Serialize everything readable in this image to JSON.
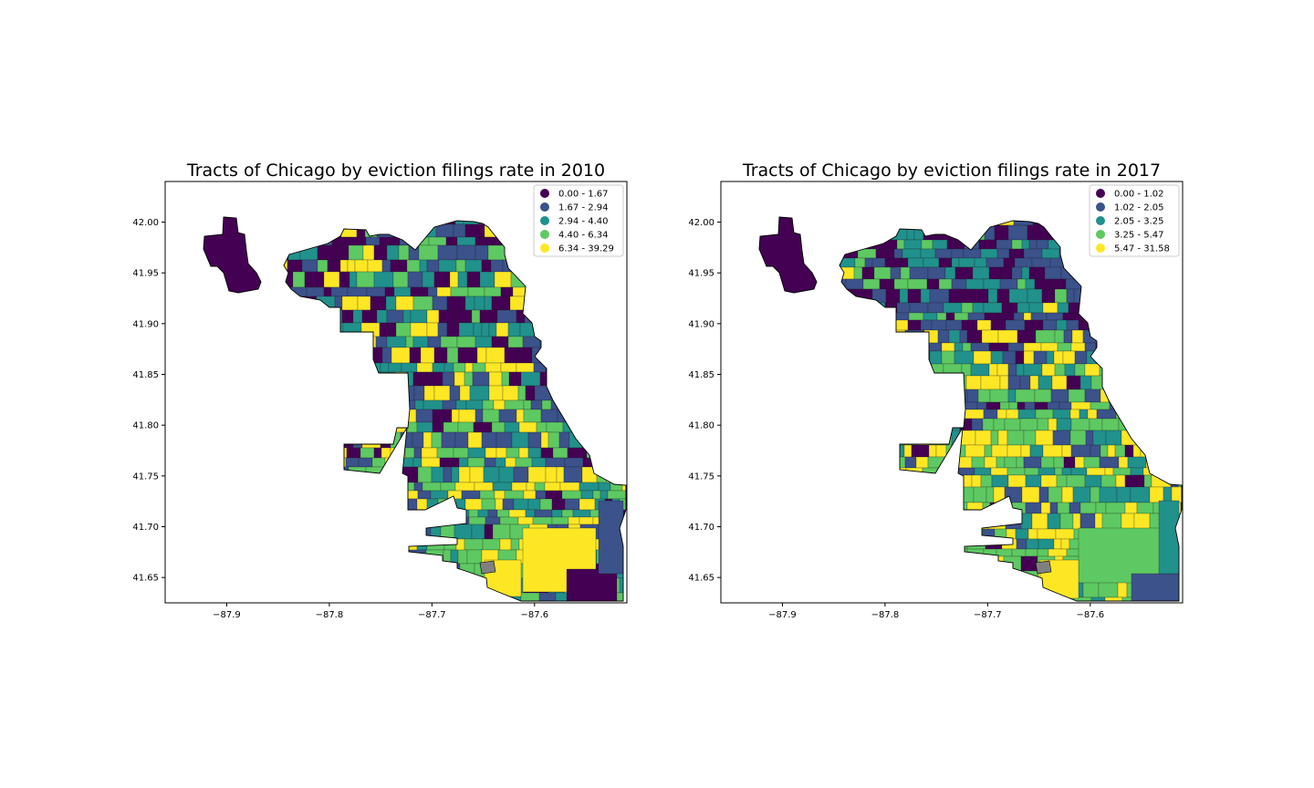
{
  "chart_data": [
    {
      "type": "choropleth",
      "title": "Tracts of Chicago by eviction filings rate in 2010",
      "xlim": [
        -87.96,
        -87.51
      ],
      "ylim": [
        41.625,
        42.04
      ],
      "xticks": [
        "−87.9",
        "−87.8",
        "−87.7",
        "−87.6"
      ],
      "xtick_values": [
        -87.9,
        -87.8,
        -87.7,
        -87.6
      ],
      "yticks": [
        "42.00",
        "41.95",
        "41.90",
        "41.85",
        "41.80",
        "41.75",
        "41.70",
        "41.65"
      ],
      "ytick_values": [
        42.0,
        41.95,
        41.9,
        41.85,
        41.8,
        41.75,
        41.7,
        41.65
      ],
      "legend_placement": "top-right",
      "legend": [
        {
          "label": "0.00 - 1.67",
          "color": "#440154"
        },
        {
          "label": "1.67 - 2.94",
          "color": "#3b528b"
        },
        {
          "label": "2.94 - 4.40",
          "color": "#21918c"
        },
        {
          "label": "4.40 - 6.34",
          "color": "#5ec962"
        },
        {
          "label": "6.34 - 39.29",
          "color": "#fde725"
        }
      ]
    },
    {
      "type": "choropleth",
      "title": "Tracts of Chicago by eviction filings rate in 2017",
      "xlim": [
        -87.96,
        -87.51
      ],
      "ylim": [
        41.625,
        42.04
      ],
      "xticks": [
        "−87.9",
        "−87.8",
        "−87.7",
        "−87.6"
      ],
      "xtick_values": [
        -87.9,
        -87.8,
        -87.7,
        -87.6
      ],
      "yticks": [
        "42.00",
        "41.95",
        "41.90",
        "41.85",
        "41.80",
        "41.75",
        "41.70",
        "41.65"
      ],
      "ytick_values": [
        42.0,
        41.95,
        41.9,
        41.85,
        41.8,
        41.75,
        41.7,
        41.65
      ],
      "legend_placement": "top-right",
      "legend": [
        {
          "label": "0.00 - 1.02",
          "color": "#440154"
        },
        {
          "label": "1.02 - 2.05",
          "color": "#3b528b"
        },
        {
          "label": "2.05 - 3.25",
          "color": "#21918c"
        },
        {
          "label": "3.25 - 5.47",
          "color": "#5ec962"
        },
        {
          "label": "5.47 - 31.58",
          "color": "#fde725"
        }
      ]
    }
  ]
}
